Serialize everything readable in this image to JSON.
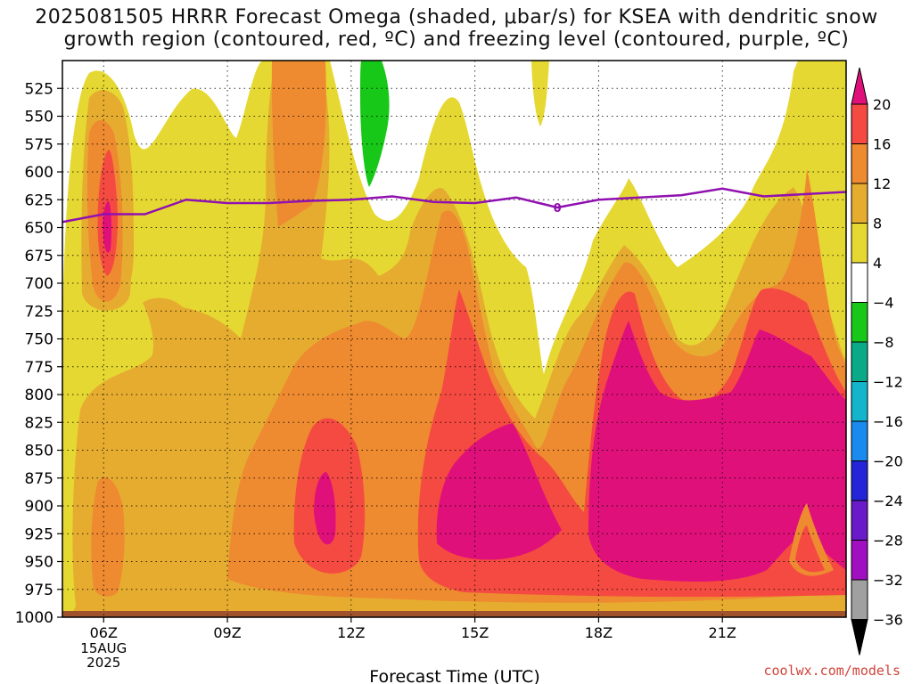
{
  "title": {
    "line1": "2025081505 HRRR Forecast Omega (shaded, μbar/s) for KSEA with dendritic snow",
    "line2": "growth region (contoured, red, ºC) and freezing level (contoured, purple, ºC)"
  },
  "credit": "coolwx.com/models",
  "chart_data": {
    "type": "heatmap",
    "xlabel": "Forecast Time (UTC)",
    "x_range_hours": [
      5,
      24
    ],
    "x_ticks": [
      {
        "hour": 6,
        "label": "06Z",
        "sub": [
          "15AUG",
          "2025"
        ]
      },
      {
        "hour": 9,
        "label": "09Z"
      },
      {
        "hour": 12,
        "label": "12Z"
      },
      {
        "hour": 15,
        "label": "15Z"
      },
      {
        "hour": 18,
        "label": "18Z"
      },
      {
        "hour": 21,
        "label": "21Z"
      }
    ],
    "y_axis": "pressure (mb)",
    "y_range": [
      1000,
      500
    ],
    "y_ticks": [
      525,
      550,
      575,
      600,
      625,
      650,
      675,
      700,
      725,
      750,
      775,
      800,
      825,
      850,
      875,
      900,
      925,
      950,
      975,
      1000
    ],
    "grid": true,
    "colorbar": {
      "levels": [
        {
          "label": "20",
          "color": "#e0107a"
        },
        {
          "label": "16",
          "color": "#f54a42"
        },
        {
          "label": "12",
          "color": "#ee8a30"
        },
        {
          "label": "8",
          "color": "#e6ac30"
        },
        {
          "label": "4",
          "color": "#e6d832"
        },
        {
          "label": "−4",
          "color": "#ffffff"
        },
        {
          "label": "−8",
          "color": "#18c818"
        },
        {
          "label": "−12",
          "color": "#0aaa88"
        },
        {
          "label": "−16",
          "color": "#14b4cc"
        },
        {
          "label": "−20",
          "color": "#1a8aee"
        },
        {
          "label": "−24",
          "color": "#2424d8"
        },
        {
          "label": "−28",
          "color": "#6a1ac8"
        },
        {
          "label": "−32",
          "color": "#a010c0"
        },
        {
          "label": "−36",
          "color": "#a0a0a0"
        }
      ],
      "top_arrow_color": "#e0107a",
      "bottom_arrow_color": "#000000"
    },
    "freezing_level": {
      "label": "0",
      "color": "#9010b0",
      "hours": [
        5,
        6,
        7,
        8,
        9,
        10,
        11,
        12,
        13,
        14,
        15,
        16,
        17,
        18,
        19,
        20,
        21,
        22,
        23,
        24
      ],
      "pressure_mb": [
        645,
        638,
        638,
        625,
        628,
        628,
        626,
        625,
        622,
        627,
        628,
        623,
        632,
        625,
        623,
        621,
        615,
        622,
        620,
        618
      ]
    },
    "ground_color": "#a0522d"
  }
}
